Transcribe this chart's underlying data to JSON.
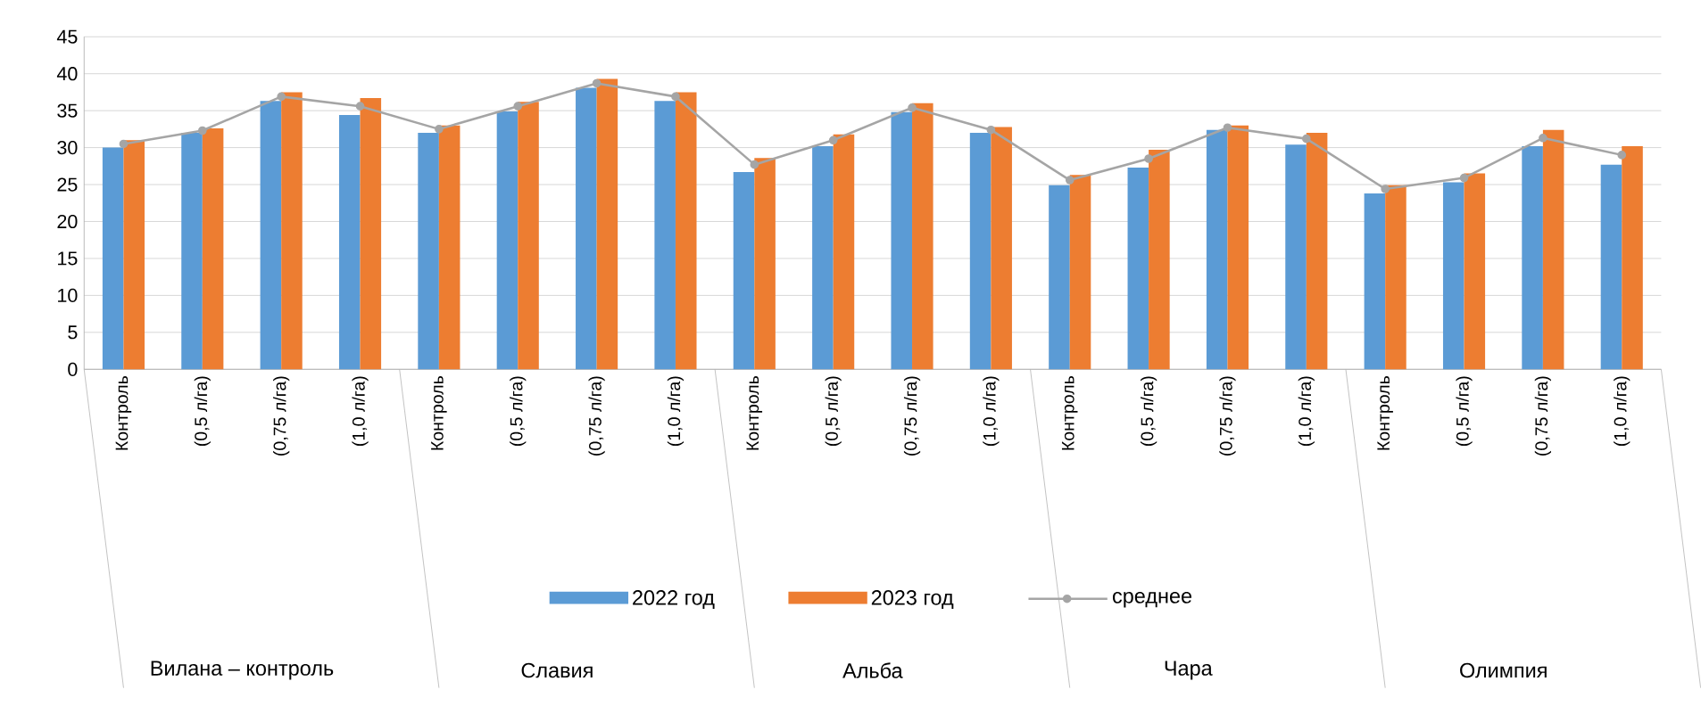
{
  "chart_data": {
    "type": "bar",
    "categories": [
      "Контроль",
      "(0,5 л/га)",
      "(0,75 л/га)",
      "(1,0 л/га)",
      "Контроль",
      "(0,5 л/га)",
      "(0,75 л/га)",
      "(1,0 л/га)",
      "Контроль",
      "(0,5 л/га)",
      "(0,75 л/га)",
      "(1,0 л/га)",
      "Контроль",
      "(0,5 л/га)",
      "(0,75 л/га)",
      "(1,0 л/га)",
      "Контроль",
      "(0,5 л/га)",
      "(0,75 л/га)",
      "(1,0 л/га)"
    ],
    "series": [
      {
        "name": "2022 год",
        "color": "#5b9bd5",
        "values": [
          30.0,
          32.0,
          36.3,
          34.4,
          32.0,
          34.9,
          38.1,
          36.3,
          26.7,
          30.2,
          34.8,
          32.0,
          24.9,
          27.3,
          32.4,
          30.4,
          23.8,
          25.3,
          30.2,
          27.7
        ]
      },
      {
        "name": "2023 год",
        "color": "#ed7d31",
        "values": [
          31.0,
          32.6,
          37.5,
          36.7,
          33.0,
          36.2,
          39.3,
          37.5,
          28.6,
          31.8,
          36.0,
          32.8,
          26.3,
          29.7,
          33.0,
          32.0,
          24.9,
          26.5,
          32.4,
          30.2
        ]
      },
      {
        "name": "среднее",
        "type": "line",
        "color": "#a5a5a5",
        "marker": "circle",
        "values": [
          30.5,
          32.3,
          36.9,
          35.6,
          32.5,
          35.6,
          38.7,
          36.9,
          27.7,
          31.0,
          35.4,
          32.4,
          25.6,
          28.5,
          32.7,
          31.2,
          24.4,
          25.9,
          31.3,
          29.0
        ]
      }
    ],
    "annotations": [
      "Вилана – контроль",
      "Славия",
      "Альба",
      "Чара",
      "Олимпия"
    ],
    "ylim": [
      0,
      45
    ],
    "yticks": [
      0,
      5,
      10,
      15,
      20,
      25,
      30,
      35,
      40,
      45
    ],
    "grid": "y",
    "legend": "bottom"
  }
}
